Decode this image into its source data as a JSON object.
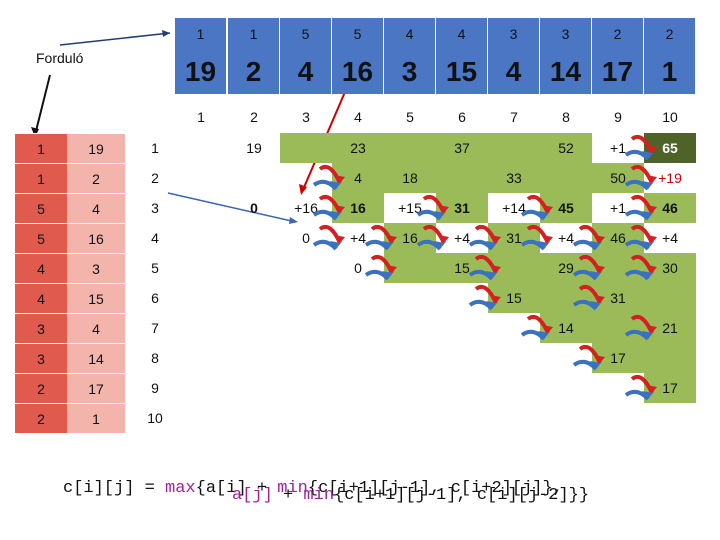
{
  "label_fordulo": "Forduló",
  "top_row1": [
    "1",
    "1",
    "5",
    "5",
    "4",
    "4",
    "3",
    "3",
    "2",
    "2"
  ],
  "top_row2": [
    "19",
    "2",
    "4",
    "16",
    "3",
    "15",
    "4",
    "14",
    "17",
    "1"
  ],
  "col_headers": [
    "1",
    "2",
    "3",
    "4",
    "5",
    "6",
    "7",
    "8",
    "9",
    "10"
  ],
  "left_a": [
    "1",
    "1",
    "5",
    "5",
    "4",
    "4",
    "3",
    "3",
    "2",
    "2"
  ],
  "left_b": [
    "19",
    "2",
    "4",
    "16",
    "3",
    "15",
    "4",
    "14",
    "17",
    "1"
  ],
  "row_headers": [
    "1",
    "2",
    "3",
    "4",
    "5",
    "6",
    "7",
    "8",
    "9",
    "10"
  ],
  "grid_cells": [
    {
      "t": "19"
    },
    {
      "t": "23"
    },
    {
      "t": "37"
    },
    {
      "t": "52"
    },
    {
      "t": "+1"
    },
    {
      "t": "65"
    },
    {
      "t": "4"
    },
    {
      "t": "18"
    },
    {
      "t": "33"
    },
    {
      "t": "50"
    },
    {
      "t": "+19"
    },
    {
      "t": "0"
    },
    {
      "t": "+16"
    },
    {
      "t": "16"
    },
    {
      "t": "+15"
    },
    {
      "t": "31"
    },
    {
      "t": "+14"
    },
    {
      "t": "45"
    },
    {
      "t": "+1"
    },
    {
      "t": "46"
    },
    {
      "t": "0"
    },
    {
      "t": "+4"
    },
    {
      "t": "16"
    },
    {
      "t": "+4"
    },
    {
      "t": "31"
    },
    {
      "t": "+4"
    },
    {
      "t": "46"
    },
    {
      "t": "+4"
    },
    {
      "t": "0"
    },
    {
      "t": "15"
    },
    {
      "t": "29"
    },
    {
      "t": "30"
    },
    {
      "t": "15"
    },
    {
      "t": "31"
    },
    {
      "t": "14"
    },
    {
      "t": "21"
    },
    {
      "t": "17"
    },
    {
      "t": "17"
    }
  ],
  "formula": {
    "l1_a": "c[i][j] = ",
    "l1_max": "max",
    "l1_b": "{a[i] + ",
    "l1_min": "min",
    "l1_c": "{c[i+1][j-1], c[i+2][j]},",
    "l2_a": "a[j]",
    "l2_b": " + ",
    "l2_min": "min",
    "l2_c": "{c[i+1][j-1], c[i][j-2]}}"
  }
}
